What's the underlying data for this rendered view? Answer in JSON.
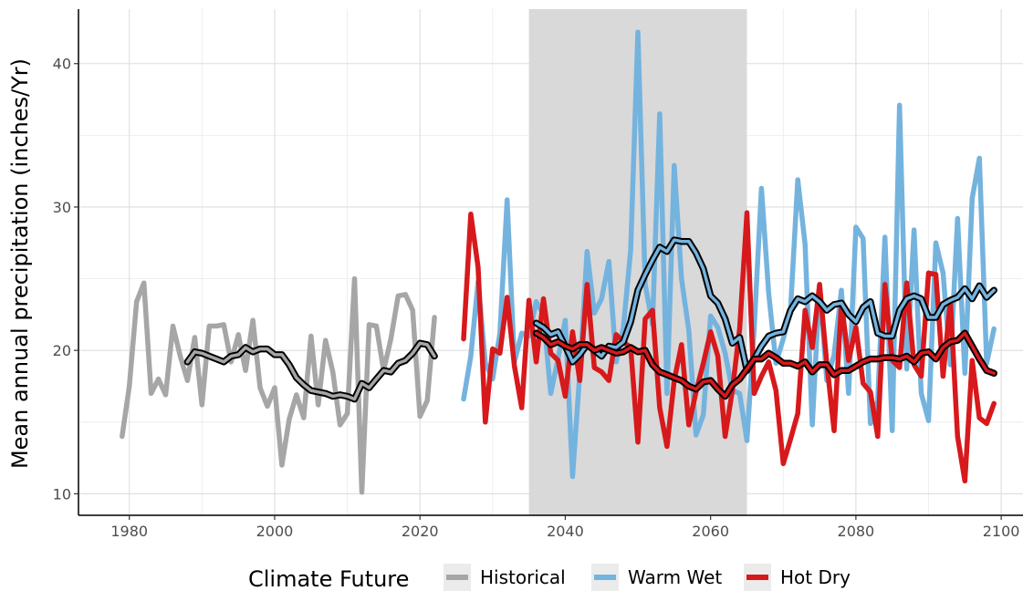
{
  "chart_data": {
    "type": "line",
    "xlabel": "",
    "ylabel": "Mean annual precipitation (inches/Yr)",
    "xlim": [
      1973,
      2103
    ],
    "ylim": [
      8.5,
      43.8
    ],
    "xticks": [
      1980,
      2000,
      2020,
      2040,
      2060,
      2080,
      2100
    ],
    "yticks": [
      10,
      20,
      30,
      40
    ],
    "grid": true,
    "shaded_period": [
      2035,
      2065
    ],
    "legend": {
      "title": "Climate Future",
      "position": "bottom",
      "entries": [
        "Historical",
        "Warm Wet",
        "Hot Dry"
      ]
    },
    "series": [
      {
        "name": "Historical",
        "color": "#a6a6a6",
        "x": [
          1979,
          1980,
          1981,
          1982,
          1983,
          1984,
          1985,
          1986,
          1987,
          1988,
          1989,
          1990,
          1991,
          1992,
          1993,
          1994,
          1995,
          1996,
          1997,
          1998,
          1999,
          2000,
          2001,
          2002,
          2003,
          2004,
          2005,
          2006,
          2007,
          2008,
          2009,
          2010,
          2011,
          2012,
          2013,
          2014,
          2015,
          2016,
          2017,
          2018,
          2019,
          2020,
          2021,
          2022
        ],
        "values": [
          14.0,
          17.5,
          23.4,
          24.7,
          17.0,
          18.0,
          16.9,
          21.7,
          19.6,
          17.9,
          20.9,
          16.2,
          21.7,
          21.7,
          21.8,
          19.2,
          21.1,
          18.6,
          22.1,
          17.4,
          16.1,
          17.4,
          12.0,
          15.2,
          16.9,
          15.3,
          21.0,
          16.2,
          20.7,
          18.5,
          14.8,
          15.6,
          25.0,
          10.1,
          21.8,
          21.7,
          18.6,
          20.8,
          23.8,
          23.9,
          22.8,
          15.4,
          16.5,
          22.3
        ]
      },
      {
        "name": "Historical (moving average)",
        "color": "#a6a6a6",
        "outline": "#000000",
        "x": [
          1988,
          1989,
          1990,
          1991,
          1992,
          1993,
          1994,
          1995,
          1996,
          1997,
          1998,
          1999,
          2000,
          2001,
          2002,
          2003,
          2004,
          2005,
          2006,
          2007,
          2008,
          2009,
          2010,
          2011,
          2012,
          2013,
          2014,
          2015,
          2016,
          2017,
          2018,
          2019,
          2020,
          2021,
          2022
        ],
        "values": [
          19.2,
          19.9,
          19.8,
          19.6,
          19.4,
          19.2,
          19.6,
          19.7,
          20.2,
          19.9,
          20.1,
          20.1,
          19.7,
          19.7,
          19.0,
          18.1,
          17.6,
          17.2,
          17.1,
          17.0,
          16.8,
          16.9,
          16.8,
          16.6,
          17.7,
          17.4,
          18.0,
          18.6,
          18.5,
          19.1,
          19.3,
          19.8,
          20.5,
          20.4,
          19.6
        ]
      },
      {
        "name": "Warm Wet",
        "color": "#74b3de",
        "x": [
          2026,
          2027,
          2028,
          2029,
          2030,
          2031,
          2032,
          2033,
          2034,
          2035,
          2036,
          2037,
          2038,
          2039,
          2040,
          2041,
          2042,
          2043,
          2044,
          2045,
          2046,
          2047,
          2048,
          2049,
          2050,
          2051,
          2052,
          2053,
          2054,
          2055,
          2056,
          2057,
          2058,
          2059,
          2060,
          2061,
          2062,
          2063,
          2064,
          2065,
          2066,
          2067,
          2068,
          2069,
          2070,
          2071,
          2072,
          2073,
          2074,
          2075,
          2076,
          2077,
          2078,
          2079,
          2080,
          2081,
          2082,
          2083,
          2084,
          2085,
          2086,
          2087,
          2088,
          2089,
          2090,
          2091,
          2092,
          2093,
          2094,
          2095,
          2096,
          2097,
          2098,
          2099
        ],
        "values": [
          16.6,
          19.6,
          24.8,
          19.1,
          18.0,
          21.2,
          30.5,
          19.2,
          21.2,
          21.0,
          23.4,
          22.5,
          17.0,
          19.4,
          22.1,
          11.2,
          18.4,
          26.9,
          22.6,
          23.6,
          26.2,
          19.2,
          21.6,
          27.0,
          42.2,
          24.6,
          21.8,
          36.5,
          17.0,
          32.9,
          25.0,
          21.4,
          14.1,
          15.5,
          22.4,
          21.6,
          19.8,
          17.2,
          17.0,
          13.7,
          21.5,
          31.3,
          24.0,
          19.1,
          20.8,
          22.8,
          31.9,
          27.4,
          14.8,
          24.6,
          17.9,
          19.7,
          24.2,
          17.0,
          28.6,
          27.8,
          14.9,
          16.5,
          27.9,
          14.4,
          37.1,
          18.7,
          28.4,
          17.0,
          15.1,
          27.5,
          25.4,
          19.0,
          29.2,
          18.4,
          30.6,
          33.4,
          19.1,
          21.5
        ]
      },
      {
        "name": "Warm Wet (moving average)",
        "color": "#74b3de",
        "outline": "#000000",
        "x": [
          2036,
          2037,
          2038,
          2039,
          2040,
          2041,
          2042,
          2043,
          2044,
          2045,
          2046,
          2047,
          2048,
          2049,
          2050,
          2051,
          2052,
          2053,
          2054,
          2055,
          2056,
          2057,
          2058,
          2059,
          2060,
          2061,
          2062,
          2063,
          2064,
          2065,
          2066,
          2067,
          2068,
          2069,
          2070,
          2071,
          2072,
          2073,
          2074,
          2075,
          2076,
          2077,
          2078,
          2079,
          2080,
          2081,
          2082,
          2083,
          2084,
          2085,
          2086,
          2087,
          2088,
          2089,
          2090,
          2091,
          2092,
          2093,
          2094,
          2095,
          2096,
          2097,
          2098,
          2099
        ],
        "values": [
          21.9,
          21.6,
          21.1,
          21.3,
          20.3,
          19.2,
          19.7,
          20.4,
          20.0,
          19.6,
          20.3,
          20.2,
          20.6,
          22.0,
          24.2,
          25.3,
          26.3,
          27.2,
          26.9,
          27.7,
          27.6,
          27.6,
          26.8,
          25.7,
          23.8,
          23.3,
          22.2,
          20.5,
          20.9,
          18.6,
          19.4,
          20.3,
          21.0,
          21.2,
          21.3,
          22.8,
          23.6,
          23.4,
          23.8,
          23.4,
          22.8,
          23.2,
          23.3,
          22.5,
          22.0,
          23.0,
          23.4,
          21.2,
          21.0,
          21.0,
          22.8,
          23.6,
          23.8,
          23.6,
          22.3,
          22.3,
          23.2,
          23.5,
          23.7,
          24.3,
          23.6,
          24.5,
          23.7,
          24.2
        ]
      },
      {
        "name": "Hot Dry",
        "color": "#d7191c",
        "x": [
          2026,
          2027,
          2028,
          2029,
          2030,
          2031,
          2032,
          2033,
          2034,
          2035,
          2036,
          2037,
          2038,
          2039,
          2040,
          2041,
          2042,
          2043,
          2044,
          2045,
          2046,
          2047,
          2048,
          2049,
          2050,
          2051,
          2052,
          2053,
          2054,
          2055,
          2056,
          2057,
          2058,
          2059,
          2060,
          2061,
          2062,
          2063,
          2064,
          2065,
          2066,
          2067,
          2068,
          2069,
          2070,
          2071,
          2072,
          2073,
          2074,
          2075,
          2076,
          2077,
          2078,
          2079,
          2080,
          2081,
          2082,
          2083,
          2084,
          2085,
          2086,
          2087,
          2088,
          2089,
          2090,
          2091,
          2092,
          2093,
          2094,
          2095,
          2096,
          2097,
          2098,
          2099
        ],
        "values": [
          20.8,
          29.5,
          25.8,
          15.0,
          20.1,
          19.8,
          23.7,
          18.9,
          16.0,
          23.5,
          19.2,
          23.6,
          19.8,
          19.3,
          16.8,
          21.3,
          17.9,
          24.6,
          18.8,
          18.5,
          17.9,
          21.1,
          20.6,
          20.2,
          13.6,
          22.2,
          22.8,
          16.0,
          13.3,
          17.9,
          20.4,
          14.8,
          17.1,
          19.1,
          21.3,
          19.6,
          14.0,
          17.2,
          21.5,
          29.6,
          17.0,
          18.2,
          19.2,
          17.2,
          12.1,
          13.8,
          15.6,
          22.8,
          20.2,
          24.6,
          19.1,
          14.4,
          23.3,
          19.3,
          21.6,
          17.7,
          17.1,
          14.0,
          24.6,
          19.3,
          18.8,
          24.7,
          19.0,
          18.2,
          25.4,
          25.3,
          18.2,
          23.5,
          14.0,
          10.9,
          19.3,
          15.3,
          14.9,
          16.3
        ]
      },
      {
        "name": "Hot Dry (moving average)",
        "color": "#d7191c",
        "outline": "#000000",
        "x": [
          2036,
          2037,
          2038,
          2039,
          2040,
          2041,
          2042,
          2043,
          2044,
          2045,
          2046,
          2047,
          2048,
          2049,
          2050,
          2051,
          2052,
          2053,
          2054,
          2055,
          2056,
          2057,
          2058,
          2059,
          2060,
          2061,
          2062,
          2063,
          2064,
          2065,
          2066,
          2067,
          2068,
          2069,
          2070,
          2071,
          2072,
          2073,
          2074,
          2075,
          2076,
          2077,
          2078,
          2079,
          2080,
          2081,
          2082,
          2083,
          2084,
          2085,
          2086,
          2087,
          2088,
          2089,
          2090,
          2091,
          2092,
          2093,
          2094,
          2095,
          2096,
          2097,
          2098,
          2099
        ],
        "values": [
          21.2,
          20.9,
          20.4,
          20.6,
          20.3,
          20.1,
          20.4,
          20.4,
          20.0,
          20.2,
          20.0,
          19.8,
          19.9,
          20.2,
          19.9,
          20.0,
          19.0,
          18.5,
          18.3,
          18.1,
          17.9,
          17.5,
          17.3,
          17.8,
          17.9,
          17.3,
          16.8,
          17.6,
          18.0,
          18.7,
          19.4,
          19.4,
          19.8,
          19.5,
          19.1,
          19.1,
          18.9,
          19.2,
          18.5,
          19.0,
          19.0,
          18.3,
          18.6,
          18.6,
          18.9,
          19.2,
          19.4,
          19.4,
          19.5,
          19.5,
          19.4,
          19.6,
          19.2,
          19.8,
          19.9,
          19.4,
          20.2,
          20.6,
          20.7,
          21.2,
          20.3,
          19.4,
          18.6,
          18.4
        ]
      }
    ]
  }
}
